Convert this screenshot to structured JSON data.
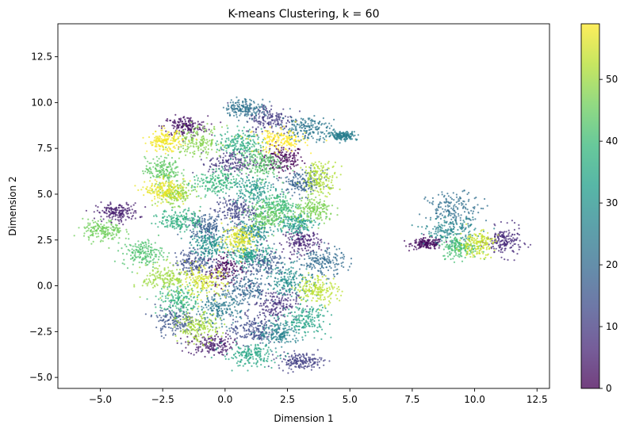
{
  "chart_data": {
    "type": "scatter",
    "title": "K-means Clustering, k = 60",
    "xlabel": "Dimension 1",
    "ylabel": "Dimension 2",
    "xlim": [
      -6.7,
      13.0
    ],
    "ylim": [
      -5.6,
      14.3
    ],
    "xticks": [
      -5.0,
      -2.5,
      0.0,
      2.5,
      5.0,
      7.5,
      10.0,
      12.5
    ],
    "xtick_labels": [
      "−5.0",
      "−2.5",
      "0.0",
      "2.5",
      "5.0",
      "7.5",
      "10.0",
      "12.5"
    ],
    "yticks": [
      -5.0,
      -2.5,
      0.0,
      2.5,
      5.0,
      7.5,
      10.0,
      12.5
    ],
    "ytick_labels": [
      "−5.0",
      "−2.5",
      "0.0",
      "2.5",
      "5.0",
      "7.5",
      "10.0",
      "12.5"
    ],
    "grid": false,
    "colormap": "viridis",
    "alpha": 0.75,
    "colorbar": {
      "range": [
        0,
        59
      ],
      "ticks": [
        0,
        10,
        20,
        30,
        40,
        50
      ],
      "tick_labels": [
        "0",
        "10",
        "20",
        "30",
        "40",
        "50"
      ]
    },
    "clusters": [
      {
        "cluster": 0,
        "x": 2.3,
        "y": 6.9,
        "sx": 0.42,
        "sy": 0.38
      },
      {
        "cluster": 1,
        "x": 0.0,
        "y": 0.9,
        "sx": 0.38,
        "sy": 0.4
      },
      {
        "cluster": 2,
        "x": 8.1,
        "y": 2.3,
        "sx": 0.32,
        "sy": 0.15
      },
      {
        "cluster": 3,
        "x": -1.6,
        "y": 8.7,
        "sx": 0.45,
        "sy": 0.28
      },
      {
        "cluster": 4,
        "x": -0.6,
        "y": -3.2,
        "sx": 0.45,
        "sy": 0.3
      },
      {
        "cluster": 5,
        "x": -4.3,
        "y": 4.0,
        "sx": 0.42,
        "sy": 0.25
      },
      {
        "cluster": 6,
        "x": 3.1,
        "y": 2.4,
        "sx": 0.38,
        "sy": 0.32
      },
      {
        "cluster": 7,
        "x": 11.2,
        "y": 2.4,
        "sx": 0.35,
        "sy": 0.4
      },
      {
        "cluster": 8,
        "x": 2.0,
        "y": -1.0,
        "sx": 0.45,
        "sy": 0.4
      },
      {
        "cluster": 9,
        "x": 0.3,
        "y": 6.7,
        "sx": 0.48,
        "sy": 0.35
      },
      {
        "cluster": 10,
        "x": 1.8,
        "y": 9.1,
        "sx": 0.5,
        "sy": 0.42
      },
      {
        "cluster": 11,
        "x": 3.0,
        "y": -4.1,
        "sx": 0.45,
        "sy": 0.22
      },
      {
        "cluster": 12,
        "x": 0.4,
        "y": 4.1,
        "sx": 0.4,
        "sy": 0.35
      },
      {
        "cluster": 13,
        "x": 1.1,
        "y": -2.4,
        "sx": 0.45,
        "sy": 0.4
      },
      {
        "cluster": 14,
        "x": -1.2,
        "y": 1.3,
        "sx": 0.4,
        "sy": 0.35
      },
      {
        "cluster": 15,
        "x": -2.0,
        "y": -1.9,
        "sx": 0.4,
        "sy": 0.4
      },
      {
        "cluster": 16,
        "x": 1.6,
        "y": 1.2,
        "sx": 0.45,
        "sy": 0.4
      },
      {
        "cluster": 17,
        "x": -0.8,
        "y": 3.2,
        "sx": 0.4,
        "sy": 0.35
      },
      {
        "cluster": 18,
        "x": 3.1,
        "y": 5.6,
        "sx": 0.42,
        "sy": 0.35
      },
      {
        "cluster": 19,
        "x": 0.8,
        "y": -0.2,
        "sx": 0.48,
        "sy": 0.45
      },
      {
        "cluster": 20,
        "x": 3.9,
        "y": 1.3,
        "sx": 0.45,
        "sy": 0.38
      },
      {
        "cluster": 21,
        "x": 9.2,
        "y": 4.2,
        "sx": 0.55,
        "sy": 0.45
      },
      {
        "cluster": 22,
        "x": 0.8,
        "y": 9.7,
        "sx": 0.4,
        "sy": 0.25
      },
      {
        "cluster": 23,
        "x": 3.2,
        "y": 8.6,
        "sx": 0.48,
        "sy": 0.35
      },
      {
        "cluster": 24,
        "x": -0.3,
        "y": -1.3,
        "sx": 0.45,
        "sy": 0.4
      },
      {
        "cluster": 25,
        "x": 4.7,
        "y": 8.2,
        "sx": 0.3,
        "sy": 0.12
      },
      {
        "cluster": 26,
        "x": 2.2,
        "y": -2.6,
        "sx": 0.42,
        "sy": 0.35
      },
      {
        "cluster": 27,
        "x": 9.0,
        "y": 3.0,
        "sx": 0.5,
        "sy": 0.35
      },
      {
        "cluster": 28,
        "x": 1.1,
        "y": 2.9,
        "sx": 0.4,
        "sy": 0.35
      },
      {
        "cluster": 29,
        "x": 2.6,
        "y": 0.3,
        "sx": 0.45,
        "sy": 0.4
      },
      {
        "cluster": 30,
        "x": -0.6,
        "y": 2.2,
        "sx": 0.38,
        "sy": 0.32
      },
      {
        "cluster": 31,
        "x": 1.1,
        "y": 5.3,
        "sx": 0.45,
        "sy": 0.38
      },
      {
        "cluster": 32,
        "x": 2.8,
        "y": 3.4,
        "sx": 0.38,
        "sy": 0.3
      },
      {
        "cluster": 33,
        "x": 1.0,
        "y": 1.7,
        "sx": 0.38,
        "sy": 0.3
      },
      {
        "cluster": 34,
        "x": 3.2,
        "y": -1.8,
        "sx": 0.45,
        "sy": 0.45
      },
      {
        "cluster": 35,
        "x": 1.0,
        "y": -3.8,
        "sx": 0.55,
        "sy": 0.3
      },
      {
        "cluster": 36,
        "x": 0.6,
        "y": 7.8,
        "sx": 0.42,
        "sy": 0.35
      },
      {
        "cluster": 37,
        "x": -1.8,
        "y": 3.6,
        "sx": 0.42,
        "sy": 0.3
      },
      {
        "cluster": 38,
        "x": -1.8,
        "y": -0.8,
        "sx": 0.45,
        "sy": 0.4
      },
      {
        "cluster": 39,
        "x": -0.4,
        "y": 5.6,
        "sx": 0.45,
        "sy": 0.38
      },
      {
        "cluster": 40,
        "x": 2.1,
        "y": 4.4,
        "sx": 0.42,
        "sy": 0.35
      },
      {
        "cluster": 41,
        "x": 9.4,
        "y": 2.1,
        "sx": 0.35,
        "sy": 0.3
      },
      {
        "cluster": 42,
        "x": -3.3,
        "y": 1.8,
        "sx": 0.4,
        "sy": 0.35
      },
      {
        "cluster": 43,
        "x": 1.4,
        "y": 6.7,
        "sx": 0.4,
        "sy": 0.42
      },
      {
        "cluster": 44,
        "x": -2.5,
        "y": 6.3,
        "sx": 0.35,
        "sy": 0.35
      },
      {
        "cluster": 45,
        "x": 1.7,
        "y": 3.8,
        "sx": 0.38,
        "sy": 0.35
      },
      {
        "cluster": 46,
        "x": -4.9,
        "y": 3.0,
        "sx": 0.4,
        "sy": 0.3
      },
      {
        "cluster": 47,
        "x": 3.6,
        "y": 4.1,
        "sx": 0.4,
        "sy": 0.35
      },
      {
        "cluster": 48,
        "x": -1.1,
        "y": 7.9,
        "sx": 0.5,
        "sy": 0.4
      },
      {
        "cluster": 49,
        "x": -2.0,
        "y": 5.0,
        "sx": 0.38,
        "sy": 0.3
      },
      {
        "cluster": 50,
        "x": -2.4,
        "y": 0.4,
        "sx": 0.45,
        "sy": 0.38
      },
      {
        "cluster": 51,
        "x": -1.1,
        "y": -2.3,
        "sx": 0.42,
        "sy": 0.4
      },
      {
        "cluster": 52,
        "x": 3.8,
        "y": 5.9,
        "sx": 0.35,
        "sy": 0.45
      },
      {
        "cluster": 53,
        "x": 3.7,
        "y": -0.2,
        "sx": 0.42,
        "sy": 0.38
      },
      {
        "cluster": 54,
        "x": 10.1,
        "y": 2.3,
        "sx": 0.35,
        "sy": 0.35
      },
      {
        "cluster": 55,
        "x": -0.9,
        "y": 0.2,
        "sx": 0.48,
        "sy": 0.4
      },
      {
        "cluster": 56,
        "x": 0.6,
        "y": 2.6,
        "sx": 0.35,
        "sy": 0.38
      },
      {
        "cluster": 57,
        "x": -2.4,
        "y": 5.2,
        "sx": 0.4,
        "sy": 0.3
      },
      {
        "cluster": 58,
        "x": -2.4,
        "y": 7.9,
        "sx": 0.35,
        "sy": 0.28
      },
      {
        "cluster": 59,
        "x": 2.2,
        "y": 7.9,
        "sx": 0.52,
        "sy": 0.32
      }
    ]
  }
}
